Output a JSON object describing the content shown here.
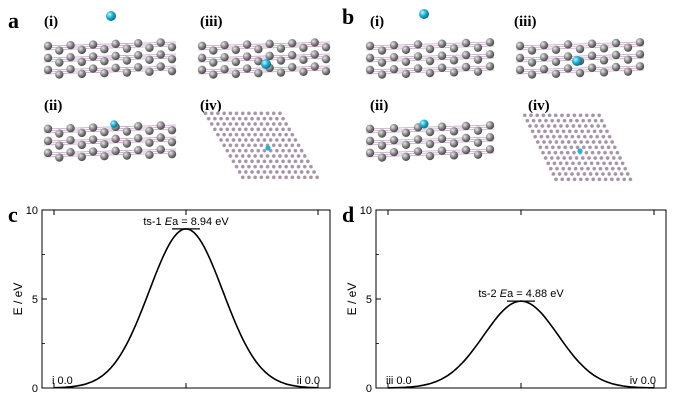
{
  "panels": {
    "a": {
      "letter": "a",
      "sub_labels": [
        "(i)",
        "(ii)",
        "(iii)",
        "(iv)"
      ]
    },
    "b": {
      "letter": "b",
      "sub_labels": [
        "(i)",
        "(ii)",
        "(iii)",
        "(iv)"
      ]
    }
  },
  "colors": {
    "atom_gray": "#7a7a7a",
    "bond_pink": "#c8a0c8",
    "adatom_cyan": "#1fb6d8",
    "curve": "#000000"
  },
  "chart_data": [
    {
      "type": "line",
      "panel_letter": "c",
      "ylabel": "E / eV",
      "xlabel": "",
      "ylim": [
        0,
        10
      ],
      "yticks": [
        0,
        5,
        10
      ],
      "series": [
        {
          "x": [
            0,
            0.25,
            0.5,
            0.75,
            1.0
          ],
          "y": [
            0.0,
            2.8,
            8.94,
            2.8,
            0.0
          ]
        }
      ],
      "barrier_label": {
        "prefix": "ts-1",
        "ea_symbol": "E",
        "ea_sub": "a",
        "value": "= 8.94 eV",
        "value_num": 8.94
      },
      "start_label": "i 0.0",
      "end_label": "ii 0.0"
    },
    {
      "type": "line",
      "panel_letter": "d",
      "ylabel": "E / eV",
      "xlabel": "",
      "ylim": [
        0,
        10
      ],
      "yticks": [
        0,
        5,
        10
      ],
      "series": [
        {
          "x": [
            0,
            0.25,
            0.5,
            0.75,
            1.0
          ],
          "y": [
            0.0,
            1.5,
            4.88,
            1.5,
            0.0
          ]
        }
      ],
      "barrier_label": {
        "prefix": "ts-2",
        "ea_symbol": "E",
        "ea_sub": "a",
        "value": "= 4.88 eV",
        "value_num": 4.88
      },
      "start_label": "iii 0.0",
      "end_label": "iv 0.0"
    }
  ]
}
